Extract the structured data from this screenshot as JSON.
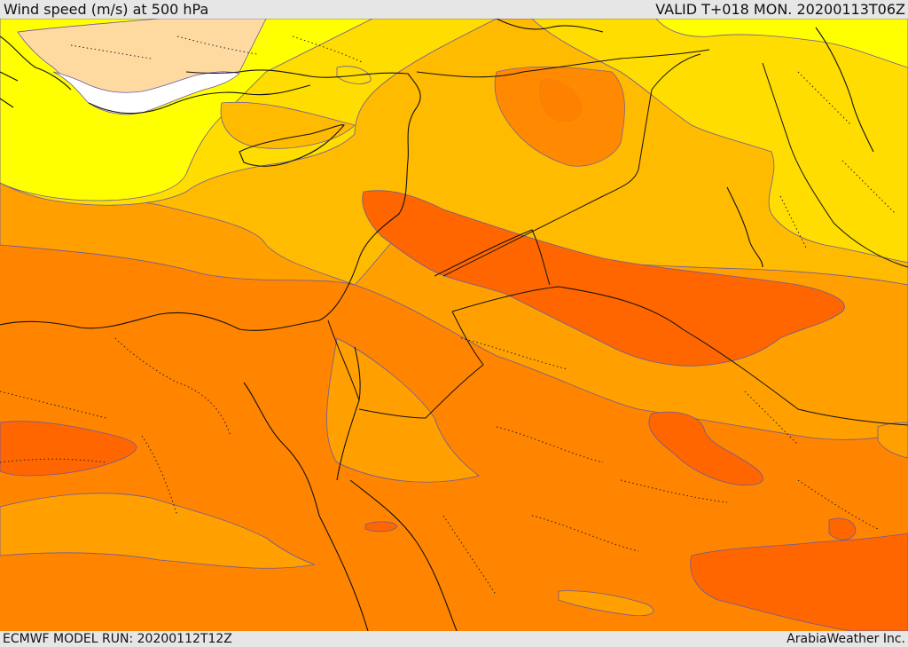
{
  "header": {
    "title": "Wind speed (m/s) at 500 hPa",
    "valid": "VALID T+018 MON. 20200113T06Z"
  },
  "footer": {
    "model_run": "ECMWF MODEL RUN: 20200112T12Z",
    "credit": "ArabiaWeather Inc."
  },
  "colors": {
    "land_white": "#ffffff",
    "band_peach": "#ffdaa0",
    "band_yellow": "#ffff00",
    "band_gold": "#ffdd00",
    "band_amber": "#ffbb00",
    "band_orange_light": "#ffa000",
    "band_orange": "#ff8400",
    "band_dark_orange": "#ff6600"
  }
}
